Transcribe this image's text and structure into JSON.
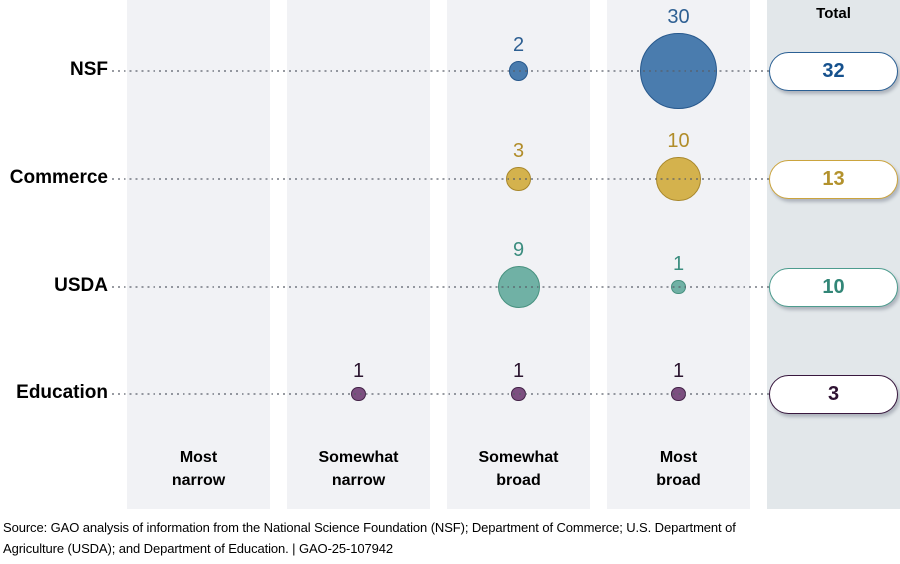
{
  "chart_data": {
    "type": "bubble",
    "description": "Bubble matrix showing number of items per agency by breadth category, with row totals",
    "grid": "category bands on x-axis, agency rows with dotted leader lines",
    "legend_position": "none",
    "column_headers": [
      "Most narrow",
      "Somewhat narrow",
      "Somewhat broad",
      "Most broad"
    ],
    "total_header": "Total",
    "rows": [
      {
        "label": "NSF",
        "values": [
          null,
          null,
          2,
          30
        ],
        "total": 32,
        "colors": {
          "fill": "#4a7cae",
          "stroke": "#27588c",
          "value_label": "#2d5f92",
          "pill_border": "#2b6094",
          "pill_text": "#15518d"
        }
      },
      {
        "label": "Commerce",
        "values": [
          null,
          null,
          3,
          10
        ],
        "total": 13,
        "colors": {
          "fill": "#d4b24d",
          "stroke": "#a8872b",
          "value_label": "#b18d2a",
          "pill_border": "#cba43e",
          "pill_text": "#b3922d"
        }
      },
      {
        "label": "USDA",
        "values": [
          null,
          null,
          9,
          1
        ],
        "total": 10,
        "colors": {
          "fill": "#70b1a5",
          "stroke": "#47917f",
          "value_label": "#3b8d7f",
          "pill_border": "#4d9c8e",
          "pill_text": "#328677"
        }
      },
      {
        "label": "Education",
        "values": [
          null,
          1,
          1,
          1
        ],
        "total": 3,
        "colors": {
          "fill": "#7c4f80",
          "stroke": "#432347",
          "value_label": "#2b152f",
          "pill_border": "#38183e",
          "pill_text": "#2e1232"
        }
      }
    ],
    "layout_colors": {
      "band_background": "#f1f2f5",
      "total_band_background": "#e2e7ea",
      "leader_dot": "#858d98"
    }
  },
  "source": {
    "line1": "Source: GAO analysis of information from the National Science Foundation (NSF); Department of Commerce; U.S. Department of",
    "line2": "Agriculture (USDA); and Department of Education.  |  GAO-25-107942"
  }
}
